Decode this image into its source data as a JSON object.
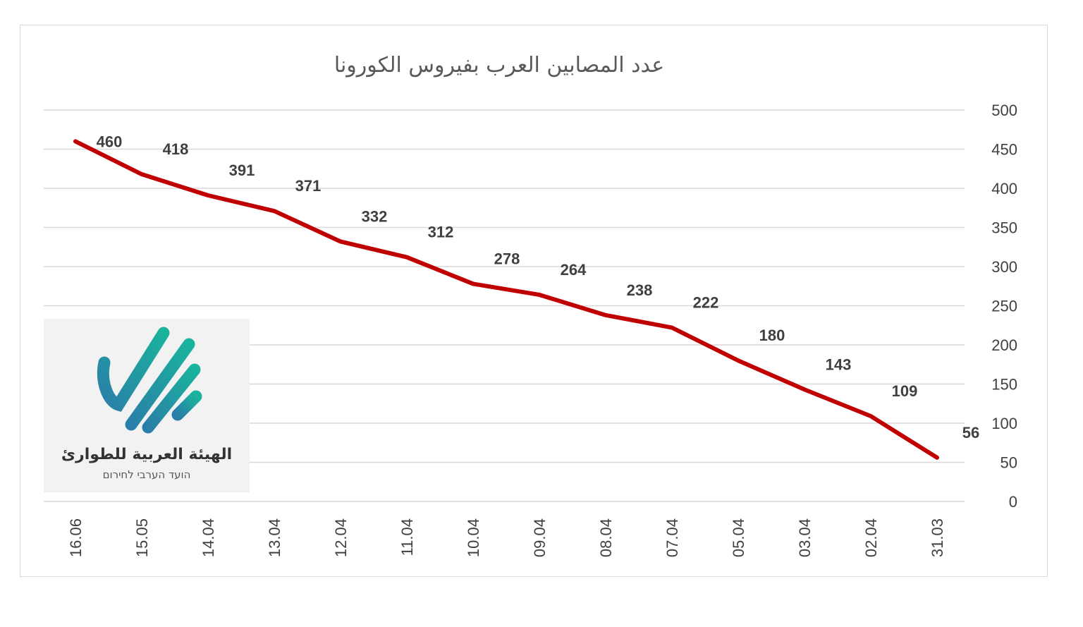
{
  "colors": {
    "line": "#c00000",
    "grid": "#d9d9d9",
    "text": "#404040",
    "logo_teal": "#1aa89a",
    "logo_blue": "#2a7fa8"
  },
  "chart_data": {
    "type": "line",
    "title": "عدد المصابين العرب بفيروس الكورونا",
    "categories": [
      "16.06",
      "15.05",
      "14.04",
      "13.04",
      "12.04",
      "11.04",
      "10.04",
      "09.04",
      "08.04",
      "07.04",
      "05.04",
      "03.04",
      "02.04",
      "31.03"
    ],
    "series": [
      {
        "values": [
          460,
          418,
          391,
          371,
          332,
          312,
          278,
          264,
          238,
          222,
          180,
          143,
          109,
          56
        ]
      }
    ],
    "y_ticks": [
      "0",
      "50",
      "100",
      "150",
      "200",
      "250",
      "300",
      "350",
      "400",
      "450",
      "500"
    ],
    "ylim": [
      0,
      500
    ],
    "grid": true,
    "legend": "none",
    "y_axis_side": "right",
    "data_labels": true
  },
  "logo": {
    "icon": "check-stripes-icon",
    "name": "الهيئة العربية للطوارئ",
    "subtitle": "הועד הערבי לחירום"
  }
}
